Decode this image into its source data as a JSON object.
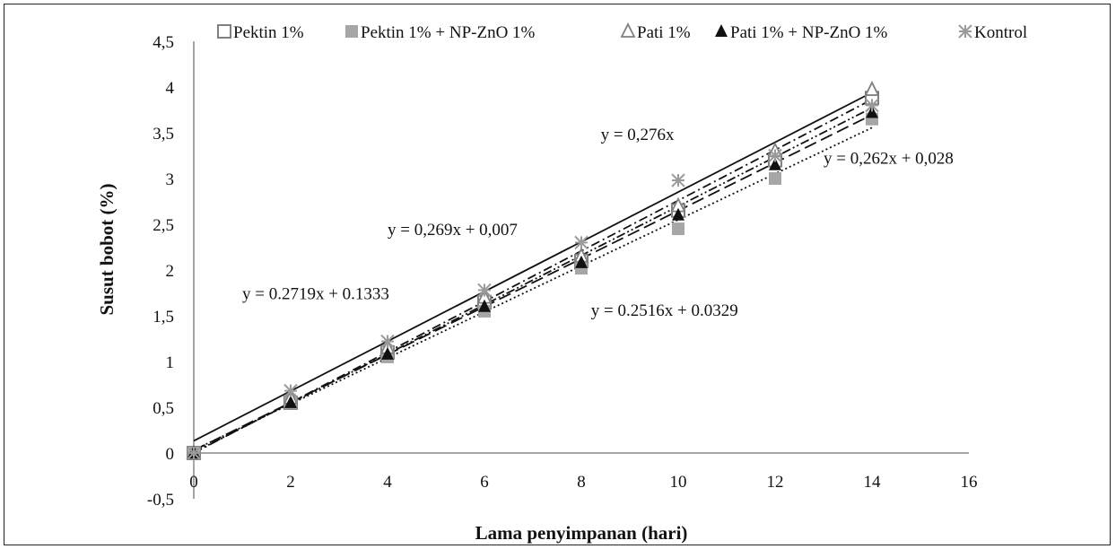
{
  "chart_data": {
    "type": "scatter",
    "xlabel": "Lama penyimpanan (hari)",
    "ylabel": "Susut bobot (%)",
    "xlim": [
      0,
      16
    ],
    "ylim": [
      -0.5,
      4.5
    ],
    "x_ticks": [
      "0",
      "2",
      "4",
      "6",
      "8",
      "10",
      "12",
      "14",
      "16"
    ],
    "y_ticks": [
      "-0,5",
      "0",
      "0,5",
      "1",
      "1,5",
      "2",
      "2,5",
      "3",
      "3,5",
      "4",
      "4,5"
    ],
    "grid": false,
    "legend_position": "top",
    "x": [
      0,
      2,
      4,
      6,
      8,
      10,
      12,
      14
    ],
    "series": [
      {
        "name": "Pektin 1%",
        "marker": "square-open",
        "color": "#808080",
        "values": [
          0,
          0.55,
          1.1,
          1.65,
          2.1,
          2.65,
          3.2,
          3.88
        ],
        "trend": {
          "slope": 0.276,
          "intercept": 0,
          "style": "dashdot"
        }
      },
      {
        "name": "Pektin 1% + NP-ZnO 1%",
        "marker": "square-filled",
        "color": "#a6a6a6",
        "values": [
          0,
          0.55,
          1.05,
          1.55,
          2.02,
          2.45,
          3.0,
          3.65
        ],
        "trend": {
          "slope": 0.2516,
          "intercept": 0.0329,
          "style": "dotted"
        }
      },
      {
        "name": "Pati 1%",
        "marker": "triangle-open",
        "color": "#808080",
        "values": [
          0,
          0.6,
          1.15,
          1.7,
          2.15,
          2.7,
          3.3,
          3.97
        ],
        "trend": {
          "slope": 0.269,
          "intercept": 0.007,
          "style": "dashdotdot"
        }
      },
      {
        "name": "Pati 1% + NP-ZnO 1%",
        "marker": "triangle-filled",
        "color": "#111111",
        "values": [
          0,
          0.55,
          1.08,
          1.6,
          2.08,
          2.6,
          3.15,
          3.72
        ],
        "trend": {
          "slope": 0.262,
          "intercept": 0.028,
          "style": "dashed"
        }
      },
      {
        "name": "Kontrol",
        "marker": "asterisk",
        "color": "#9a9a9a",
        "values": [
          0,
          0.68,
          1.22,
          1.78,
          2.3,
          2.98,
          3.25,
          3.8
        ],
        "trend": {
          "slope": 0.2719,
          "intercept": 0.1333,
          "style": "solid"
        }
      }
    ],
    "annotations": [
      {
        "text": "y = 0,276x",
        "x": 8.4,
        "y": 3.42
      },
      {
        "text": "y = 0,262x + 0,028",
        "x": 13.0,
        "y": 3.16
      },
      {
        "text": "y = 0,269x + 0,007",
        "x": 4.0,
        "y": 2.38
      },
      {
        "text": "y = 0.2719x + 0.1333",
        "x": 1.0,
        "y": 1.68
      },
      {
        "text": "y = 0.2516x + 0.0329",
        "x": 8.2,
        "y": 1.5
      }
    ]
  }
}
